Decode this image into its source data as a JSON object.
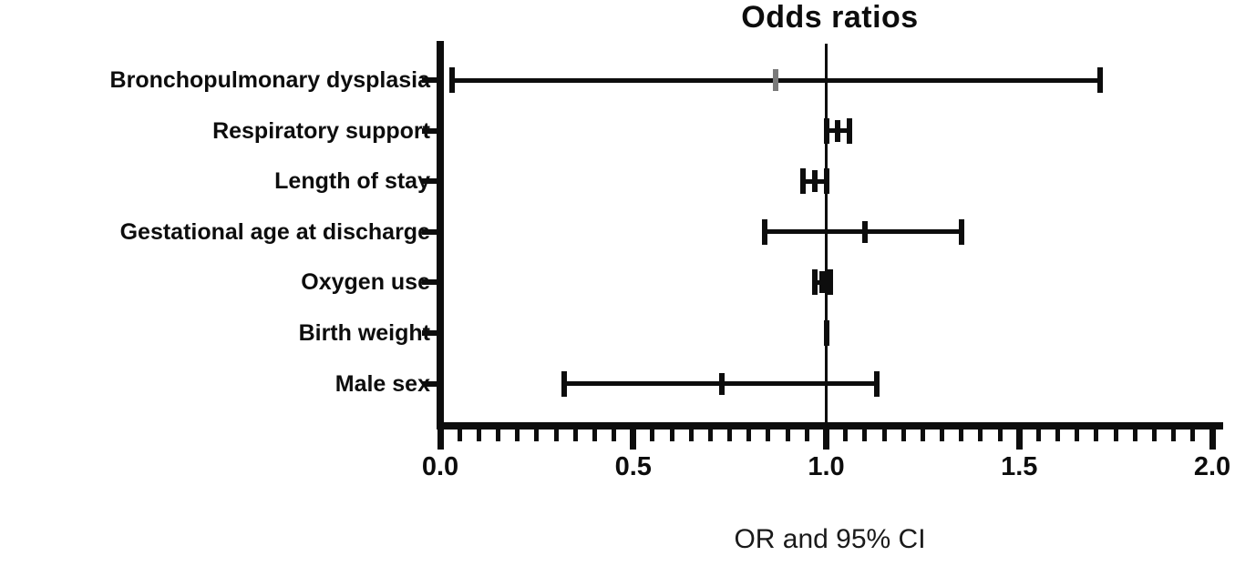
{
  "chart_data": {
    "type": "scatter",
    "subtype": "forest-plot",
    "title": "Odds ratios",
    "xlabel": "OR and 95% CI",
    "ylabel": "",
    "xlim": [
      0.0,
      2.0
    ],
    "x_major_ticks": [
      0.0,
      0.5,
      1.0,
      1.5,
      2.0
    ],
    "x_major_tick_labels": [
      "0.0",
      "0.5",
      "1.0",
      "1.5",
      "2.0"
    ],
    "x_minor_tick_step": 0.05,
    "reference_line_x": 1.0,
    "grid": "off",
    "legend": "none",
    "colors": {
      "ink": "#0d0d0d",
      "bpd_marker": "#7a7a7a"
    },
    "categories": [
      "Bronchopulmonary dysplasia",
      "Respiratory support",
      "Length of stay",
      "Gestational age at discharge",
      "Oxygen use",
      "Birth weight",
      "Male sex"
    ],
    "series": [
      {
        "name": "OR and 95% CI",
        "points": [
          {
            "label": "Bronchopulmonary dysplasia",
            "or": 0.87,
            "ci_low": 0.03,
            "ci_high": 1.71,
            "marker_color": "#7a7a7a"
          },
          {
            "label": "Respiratory support",
            "or": 1.03,
            "ci_low": 1.0,
            "ci_high": 1.06,
            "marker_color": "#0d0d0d"
          },
          {
            "label": "Length of stay",
            "or": 0.97,
            "ci_low": 0.94,
            "ci_high": 1.0,
            "marker_color": "#0d0d0d"
          },
          {
            "label": "Gestational age at discharge",
            "or": 1.1,
            "ci_low": 0.84,
            "ci_high": 1.35,
            "marker_color": "#0d0d0d"
          },
          {
            "label": "Oxygen use",
            "or": 0.99,
            "ci_low": 0.97,
            "ci_high": 1.01,
            "marker_color": "#0d0d0d"
          },
          {
            "label": "Birth weight",
            "or": 1.0,
            "ci_low": 1.0,
            "ci_high": 1.0,
            "marker_color": "#0d0d0d"
          },
          {
            "label": "Male sex",
            "or": 0.73,
            "ci_low": 0.32,
            "ci_high": 1.13,
            "marker_color": "#0d0d0d"
          }
        ]
      }
    ]
  }
}
